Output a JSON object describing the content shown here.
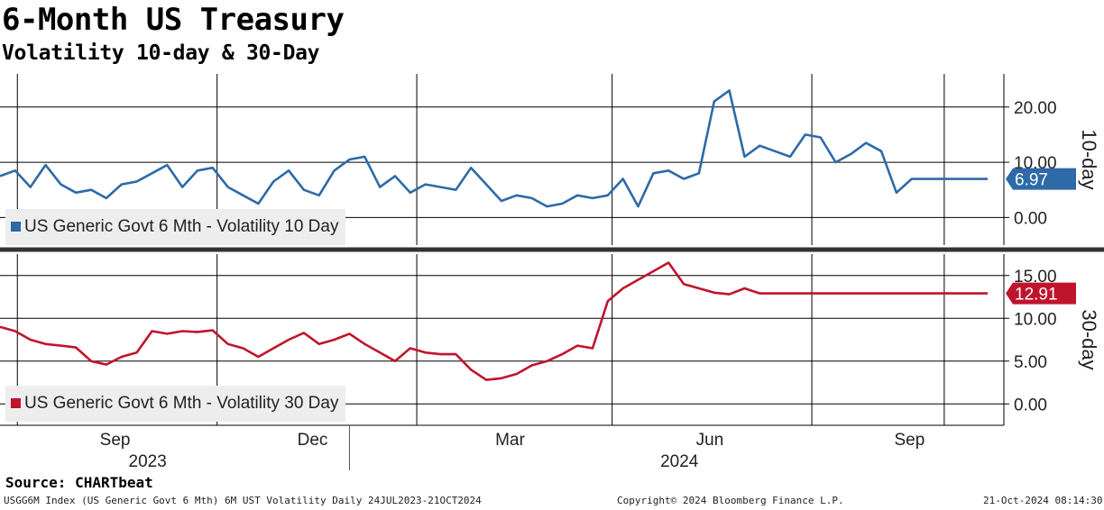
{
  "title": "6-Month US Treasury",
  "subtitle": "Volatility 10-day & 30-Day",
  "source": "Source: CHARTbeat",
  "footer": {
    "left": "USGG6M Index (US Generic Govt 6 Mth) 6M UST Volatility  Daily 24JUL2023-21OCT2024",
    "center": "Copyright© 2024 Bloomberg Finance L.P.",
    "right": "21-Oct-2024 08:14:30"
  },
  "colors": {
    "series_10d": "#2e6aa8",
    "series_30d": "#c0142d"
  },
  "chart_data": [
    {
      "type": "line",
      "panel_label": "10-day",
      "series": [
        {
          "name": "US Generic Govt 6 Mth - Volatility 10 Day",
          "last_value": "6.97"
        }
      ],
      "yticks": [
        "0.00",
        "10.00",
        "20.00"
      ],
      "ylim": [
        -5,
        26
      ],
      "x": [
        "2023-07-24",
        "2023-07-31",
        "2023-08-07",
        "2023-08-14",
        "2023-08-21",
        "2023-08-28",
        "2023-09-04",
        "2023-09-11",
        "2023-09-18",
        "2023-09-25",
        "2023-10-02",
        "2023-10-09",
        "2023-10-16",
        "2023-10-23",
        "2023-10-30",
        "2023-11-06",
        "2023-11-13",
        "2023-11-20",
        "2023-11-27",
        "2023-12-04",
        "2023-12-11",
        "2023-12-18",
        "2023-12-25",
        "2024-01-01",
        "2024-01-08",
        "2024-01-15",
        "2024-01-22",
        "2024-01-29",
        "2024-02-05",
        "2024-02-12",
        "2024-02-19",
        "2024-02-26",
        "2024-03-04",
        "2024-03-11",
        "2024-03-18",
        "2024-03-25",
        "2024-04-01",
        "2024-04-08",
        "2024-04-15",
        "2024-04-22",
        "2024-04-29",
        "2024-05-06",
        "2024-05-13",
        "2024-05-20",
        "2024-05-27",
        "2024-06-03",
        "2024-06-10",
        "2024-06-17",
        "2024-06-24",
        "2024-07-01",
        "2024-07-08",
        "2024-07-15",
        "2024-07-22",
        "2024-07-29",
        "2024-08-05",
        "2024-08-12",
        "2024-08-19",
        "2024-08-26",
        "2024-09-02",
        "2024-09-09",
        "2024-09-16",
        "2024-09-23",
        "2024-09-30",
        "2024-10-07",
        "2024-10-14",
        "2024-10-21"
      ],
      "values": [
        7.5,
        8.5,
        5.5,
        9.5,
        6.0,
        4.5,
        5.0,
        3.5,
        6.0,
        6.5,
        8.0,
        9.5,
        5.5,
        8.5,
        9.0,
        5.5,
        4.0,
        2.5,
        6.5,
        8.5,
        5.0,
        4.0,
        8.5,
        10.5,
        11.0,
        5.5,
        7.5,
        4.5,
        6.0,
        5.5,
        5.0,
        9.0,
        6.0,
        3.0,
        4.0,
        3.5,
        2.0,
        2.5,
        4.0,
        3.5,
        4.0,
        7.0,
        2.0,
        8.0,
        8.5,
        7.0,
        8.0,
        21.0,
        23.0,
        11.0,
        13.0,
        12.0,
        11.0,
        15.0,
        14.5,
        10.0,
        11.5,
        13.5,
        12.0,
        4.5,
        7.0,
        6.97,
        6.97,
        6.97,
        6.97,
        6.97
      ]
    },
    {
      "type": "line",
      "panel_label": "30-day",
      "series": [
        {
          "name": "US Generic Govt 6 Mth - Volatility 30 Day",
          "last_value": "12.91"
        }
      ],
      "yticks": [
        "0.00",
        "5.00",
        "10.00",
        "15.00"
      ],
      "ylim": [
        -2.5,
        17.5
      ],
      "x": [
        "2023-07-24",
        "2023-07-31",
        "2023-08-07",
        "2023-08-14",
        "2023-08-21",
        "2023-08-28",
        "2023-09-04",
        "2023-09-11",
        "2023-09-18",
        "2023-09-25",
        "2023-10-02",
        "2023-10-09",
        "2023-10-16",
        "2023-10-23",
        "2023-10-30",
        "2023-11-06",
        "2023-11-13",
        "2023-11-20",
        "2023-11-27",
        "2023-12-04",
        "2023-12-11",
        "2023-12-18",
        "2023-12-25",
        "2024-01-01",
        "2024-01-08",
        "2024-01-15",
        "2024-01-22",
        "2024-01-29",
        "2024-02-05",
        "2024-02-12",
        "2024-02-19",
        "2024-02-26",
        "2024-03-04",
        "2024-03-11",
        "2024-03-18",
        "2024-03-25",
        "2024-04-01",
        "2024-04-08",
        "2024-04-15",
        "2024-04-22",
        "2024-04-29",
        "2024-05-06",
        "2024-05-13",
        "2024-05-20",
        "2024-05-27",
        "2024-06-03",
        "2024-06-10",
        "2024-06-17",
        "2024-06-24",
        "2024-07-01",
        "2024-07-08",
        "2024-07-15",
        "2024-07-22",
        "2024-07-29",
        "2024-08-05",
        "2024-08-12",
        "2024-08-19",
        "2024-08-26",
        "2024-09-02",
        "2024-09-09",
        "2024-09-16",
        "2024-09-23",
        "2024-09-30",
        "2024-10-07",
        "2024-10-14",
        "2024-10-21"
      ],
      "values": [
        9.0,
        8.5,
        7.5,
        7.0,
        6.8,
        6.6,
        5.0,
        4.6,
        5.5,
        6.0,
        8.5,
        8.2,
        8.5,
        8.4,
        8.6,
        7.0,
        6.5,
        5.5,
        6.5,
        7.5,
        8.3,
        7.0,
        7.5,
        8.2,
        7.0,
        6.0,
        5.0,
        6.5,
        6.0,
        5.8,
        5.8,
        4.0,
        2.8,
        3.0,
        3.5,
        4.5,
        5.0,
        5.8,
        6.8,
        6.5,
        12.0,
        13.5,
        14.5,
        15.5,
        16.5,
        14.0,
        13.5,
        13.0,
        12.8,
        13.5,
        12.91,
        12.91,
        12.91,
        12.91,
        12.91,
        12.91,
        12.91,
        12.91,
        12.91,
        12.91,
        12.91,
        12.91,
        12.91,
        12.91,
        12.91,
        12.91
      ],
      "xaxis": {
        "month_labels": [
          "Sep",
          "Dec",
          "Mar",
          "Jun",
          "Sep"
        ],
        "year_labels": [
          "2023",
          "2024"
        ]
      }
    }
  ]
}
